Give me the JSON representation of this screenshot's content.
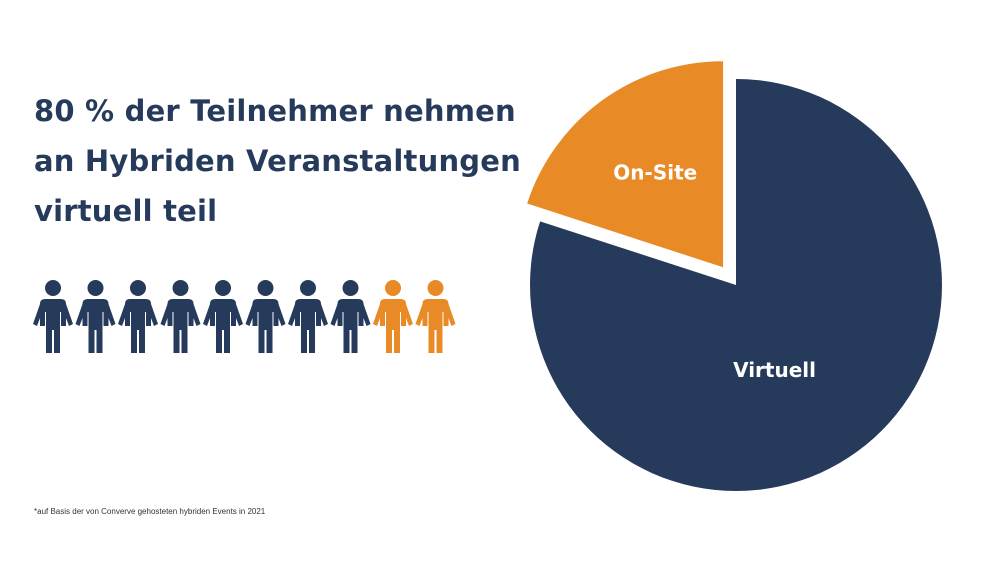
{
  "headline": {
    "lines": [
      "80 % der Teilnehmer nehmen",
      "an Hybriden Veranstaltungen",
      "virtuell teil"
    ]
  },
  "people": {
    "total": 10,
    "highlighted": 2,
    "icon": "person-icon",
    "colors": {
      "virtual": "#263a5c",
      "onsite": "#e88a26"
    }
  },
  "chart_data": {
    "type": "pie",
    "slices": [
      {
        "label": "Virtuell",
        "value": 80,
        "color": "#263a5c",
        "exploded": false
      },
      {
        "label": "On-Site",
        "value": 20,
        "color": "#e88a26",
        "exploded": true
      }
    ],
    "legend": "none"
  },
  "footnote": "*auf Basis der von Converve gehosteten hybriden Events in 2021"
}
